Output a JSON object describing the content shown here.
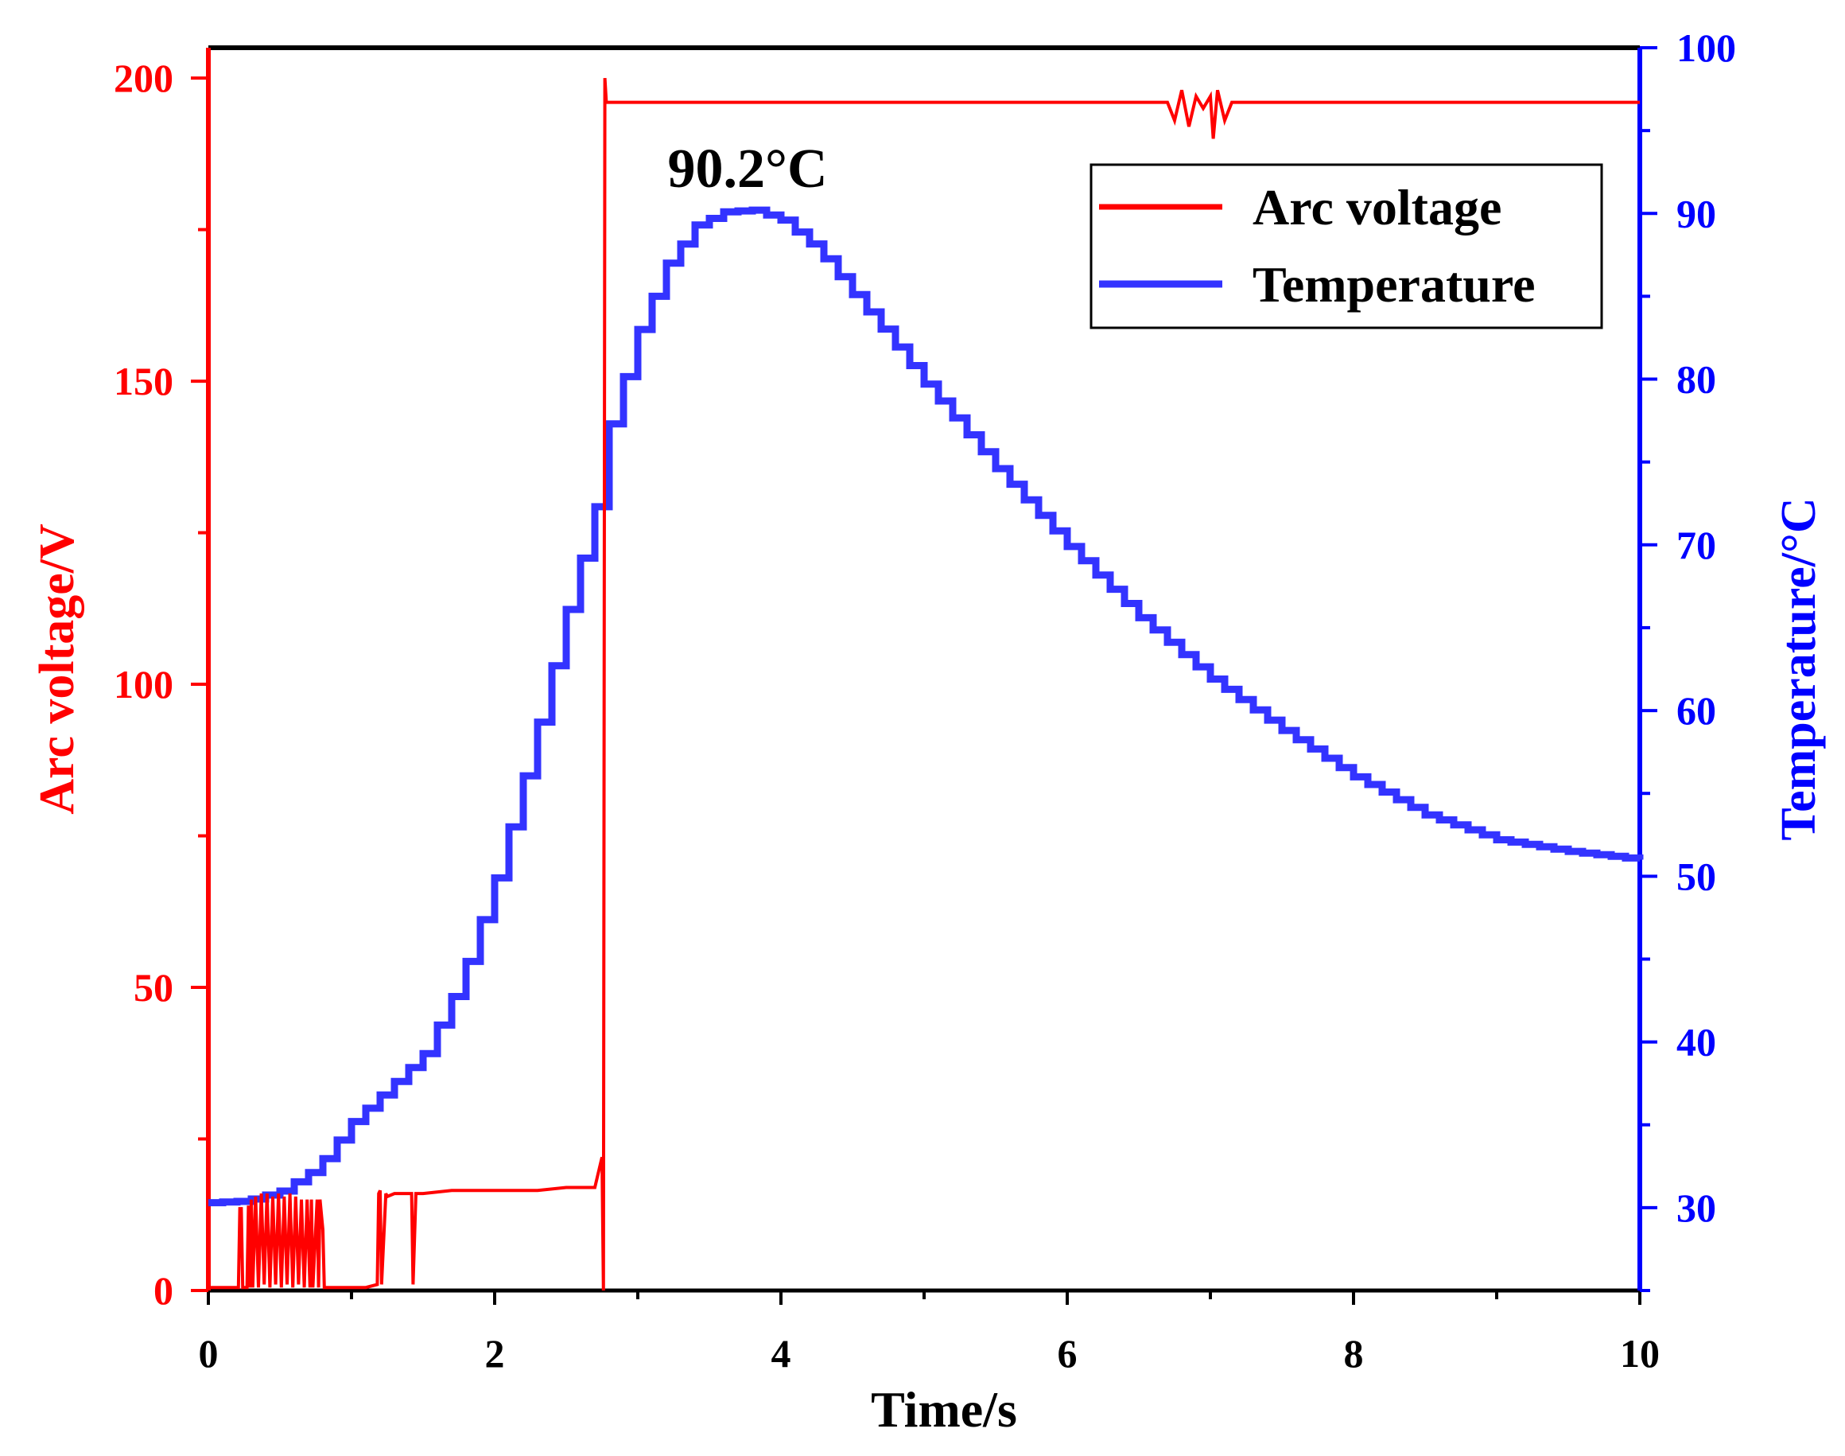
{
  "chart_data": {
    "type": "line",
    "title": "",
    "xlabel": "Time/s",
    "ylabel_left": "Arc voltage/V",
    "ylabel_right": "Temperature/°C",
    "xlim": [
      0,
      10
    ],
    "ylim_left": [
      0,
      205
    ],
    "ylim_right": [
      25,
      100
    ],
    "x_ticks": [
      "0",
      "2",
      "4",
      "6",
      "8",
      "10"
    ],
    "x_tick_values": [
      0,
      2,
      4,
      6,
      8,
      10
    ],
    "left_ticks": [
      "0",
      "50",
      "100",
      "150",
      "200"
    ],
    "left_tick_values": [
      0,
      50,
      100,
      150,
      200
    ],
    "right_ticks": [
      "30",
      "40",
      "50",
      "60",
      "70",
      "80",
      "90",
      "100"
    ],
    "right_tick_values": [
      30,
      40,
      50,
      60,
      70,
      80,
      90,
      100
    ],
    "grid": false,
    "legend_position": "top-right",
    "legend": [
      "Arc voltage",
      "Temperature"
    ],
    "annotation": {
      "text": "90.2°C",
      "x": 3.8,
      "y": 90.2
    },
    "colors": {
      "voltage": "#ff0000",
      "temperature": "#3333ff",
      "left_axis": "#ff0000",
      "right_axis": "#0000ff",
      "frame": "#000000"
    },
    "series": [
      {
        "name": "Arc voltage",
        "axis": "left",
        "x": [
          0,
          0.21,
          0.22,
          0.23,
          0.24,
          0.27,
          0.28,
          0.29,
          0.3,
          0.31,
          0.33,
          0.35,
          0.37,
          0.39,
          0.41,
          0.43,
          0.45,
          0.47,
          0.49,
          0.51,
          0.53,
          0.55,
          0.57,
          0.59,
          0.61,
          0.63,
          0.65,
          0.67,
          0.69,
          0.71,
          0.72,
          0.73,
          0.76,
          0.77,
          0.78,
          0.8,
          0.81,
          0.82,
          0.83,
          1.1,
          1.18,
          1.19,
          1.2,
          1.21,
          1.24,
          1.25,
          1.3,
          1.4,
          1.42,
          1.43,
          1.45,
          1.46,
          1.5,
          1.7,
          1.9,
          2.1,
          2.3,
          2.5,
          2.7,
          2.75,
          2.76,
          2.77,
          2.78,
          2.79,
          2.8,
          3.0,
          4.0,
          5.0,
          6.0,
          6.7,
          6.75,
          6.8,
          6.85,
          6.9,
          6.95,
          7.0,
          7.02,
          7.05,
          7.1,
          7.15,
          7.2,
          7.3,
          8.0,
          9.0,
          10.0
        ],
        "values": [
          0.5,
          0.5,
          13.5,
          13.5,
          0.5,
          0.5,
          14,
          0.5,
          15,
          0.5,
          15.5,
          0.5,
          16,
          1,
          16,
          0.5,
          15.5,
          1,
          16,
          0.5,
          15.5,
          1,
          16,
          0.5,
          15.5,
          1,
          15,
          0.5,
          15,
          0.5,
          15,
          0.5,
          15,
          0.5,
          15,
          10,
          0.5,
          0.5,
          0.5,
          0.5,
          1,
          16,
          16.5,
          1,
          16,
          15.5,
          16,
          16,
          16,
          1,
          16,
          16,
          16,
          16.5,
          16.5,
          16.5,
          16.5,
          17,
          17,
          22,
          0,
          200,
          196,
          196,
          196,
          196,
          196,
          196,
          196,
          196,
          193,
          198,
          192,
          197,
          195,
          197,
          190,
          198,
          193,
          196,
          196,
          196,
          196,
          196,
          196
        ]
      },
      {
        "name": "Temperature",
        "axis": "right",
        "x": [
          0,
          0.25,
          0.5,
          0.75,
          1.0,
          1.25,
          1.5,
          1.75,
          2.0,
          2.25,
          2.5,
          2.7,
          2.8,
          3.0,
          3.2,
          3.4,
          3.6,
          3.8,
          4.0,
          4.25,
          4.5,
          4.75,
          5.0,
          5.5,
          6.0,
          6.5,
          7.0,
          7.5,
          8.0,
          8.5,
          9.0,
          9.5,
          10.0
        ],
        "values": [
          30.3,
          30.4,
          31.0,
          32.4,
          35.2,
          37.2,
          39.3,
          43.6,
          49.9,
          57.6,
          66.1,
          72.3,
          77.3,
          83.0,
          87.0,
          89.3,
          90.1,
          90.2,
          89.6,
          87.8,
          85.1,
          82.5,
          79.7,
          74.6,
          69.9,
          65.6,
          61.9,
          58.8,
          56.0,
          53.7,
          52.2,
          51.5,
          51.0
        ]
      }
    ]
  }
}
